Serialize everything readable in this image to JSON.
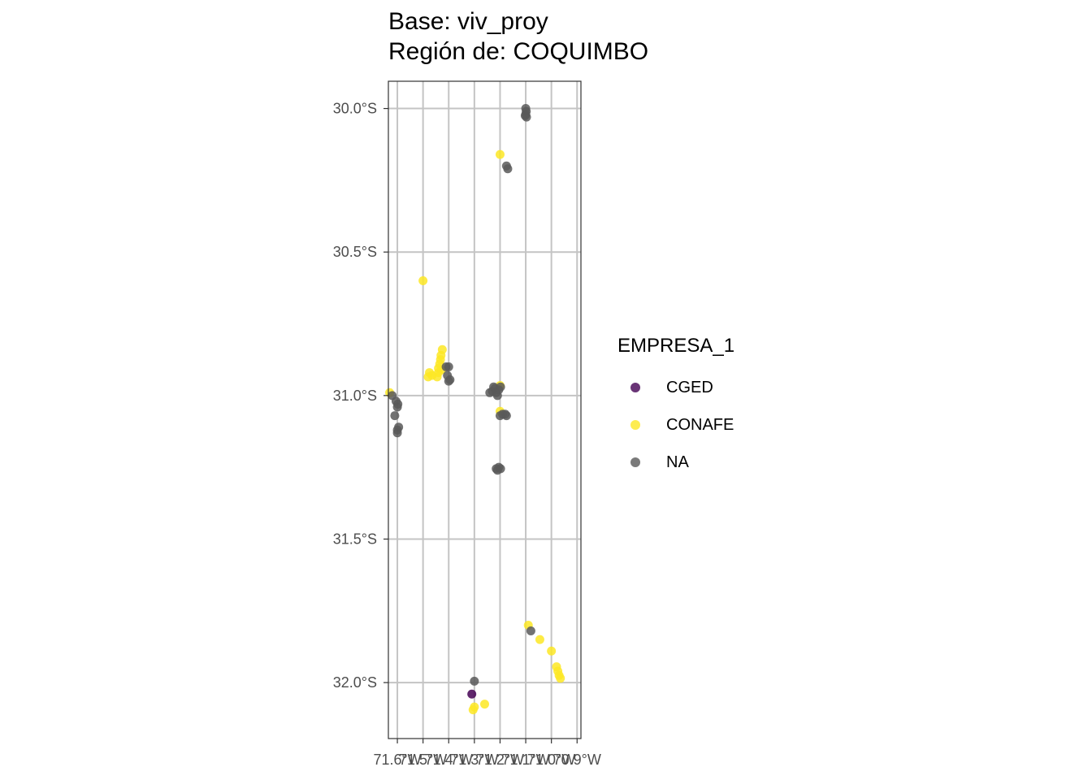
{
  "chart_data": {
    "type": "scatter",
    "title": "Base: viv_proy",
    "subtitle": "Región de: COQUIMBO",
    "xlabel": "",
    "ylabel": "",
    "xlim": [
      -71.635,
      -70.885
    ],
    "ylim": [
      -32.195,
      -29.905
    ],
    "x_ticks": [
      -71.6,
      -71.5,
      -71.4,
      -71.3,
      -71.2,
      -71.1,
      -71.0,
      -70.9
    ],
    "x_tick_labels": [
      "71.6°W",
      "71.5°W",
      "71.4°W",
      "71.3°W",
      "71.2°W",
      "71.1°W",
      "71.0°W",
      "70.9°W"
    ],
    "y_ticks": [
      -30.0,
      -30.5,
      -31.0,
      -31.5,
      -32.0
    ],
    "y_tick_labels": [
      "30.0°S",
      "30.5°S",
      "31.0°S",
      "31.5°S",
      "32.0°S"
    ],
    "grid": true,
    "legend_position": "right",
    "legend": {
      "title": "EMPRESA_1",
      "entries": [
        {
          "name": "CGED",
          "color": "#440154"
        },
        {
          "name": "CONAFE",
          "color": "#FDE725"
        },
        {
          "name": "NA",
          "color": "#595959"
        }
      ]
    },
    "series": [
      {
        "name": "CONAFE",
        "color": "#FDE725",
        "points": [
          [
            -71.5,
            -30.6
          ],
          [
            -71.425,
            -30.84
          ],
          [
            -71.43,
            -30.86
          ],
          [
            -71.432,
            -30.875
          ],
          [
            -71.435,
            -30.89
          ],
          [
            -71.428,
            -30.91
          ],
          [
            -71.44,
            -30.92
          ],
          [
            -71.445,
            -30.935
          ],
          [
            -71.465,
            -30.93
          ],
          [
            -71.475,
            -30.92
          ],
          [
            -71.48,
            -30.935
          ],
          [
            -71.44,
            -30.905
          ],
          [
            -71.2,
            -30.16
          ],
          [
            -71.2,
            -30.965
          ],
          [
            -71.2,
            -31.055
          ],
          [
            -71.63,
            -30.99
          ],
          [
            -71.09,
            -31.8
          ],
          [
            -71.045,
            -31.85
          ],
          [
            -71.0,
            -31.89
          ],
          [
            -70.98,
            -31.945
          ],
          [
            -70.975,
            -31.96
          ],
          [
            -70.97,
            -31.975
          ],
          [
            -70.965,
            -31.985
          ],
          [
            -71.26,
            -32.075
          ],
          [
            -71.3,
            -32.085
          ],
          [
            -71.305,
            -32.095
          ]
        ]
      },
      {
        "name": "NA",
        "color": "#595959",
        "points": [
          [
            -71.1,
            -30.0
          ],
          [
            -71.098,
            -30.01
          ],
          [
            -71.1,
            -30.02
          ],
          [
            -71.097,
            -30.03
          ],
          [
            -71.102,
            -30.025
          ],
          [
            -71.175,
            -30.2
          ],
          [
            -71.17,
            -30.21
          ],
          [
            -71.62,
            -31.0
          ],
          [
            -71.605,
            -31.02
          ],
          [
            -71.598,
            -31.03
          ],
          [
            -71.6,
            -31.04
          ],
          [
            -71.61,
            -31.07
          ],
          [
            -71.595,
            -31.11
          ],
          [
            -71.6,
            -31.12
          ],
          [
            -71.6,
            -31.13
          ],
          [
            -71.41,
            -30.9
          ],
          [
            -71.4,
            -30.9
          ],
          [
            -71.405,
            -30.93
          ],
          [
            -71.395,
            -30.945
          ],
          [
            -71.4,
            -30.95
          ],
          [
            -71.24,
            -30.99
          ],
          [
            -71.23,
            -30.985
          ],
          [
            -71.225,
            -30.97
          ],
          [
            -71.22,
            -30.975
          ],
          [
            -71.215,
            -30.99
          ],
          [
            -71.21,
            -31.0
          ],
          [
            -71.205,
            -30.98
          ],
          [
            -71.198,
            -30.97
          ],
          [
            -71.19,
            -31.065
          ],
          [
            -71.18,
            -31.065
          ],
          [
            -71.2,
            -31.07
          ],
          [
            -71.175,
            -31.07
          ],
          [
            -71.215,
            -31.255
          ],
          [
            -71.21,
            -31.26
          ],
          [
            -71.205,
            -31.25
          ],
          [
            -71.198,
            -31.255
          ],
          [
            -71.08,
            -31.82
          ],
          [
            -71.3,
            -31.995
          ]
        ]
      },
      {
        "name": "CGED",
        "color": "#440154",
        "points": [
          [
            -71.31,
            -32.04
          ]
        ]
      }
    ]
  }
}
